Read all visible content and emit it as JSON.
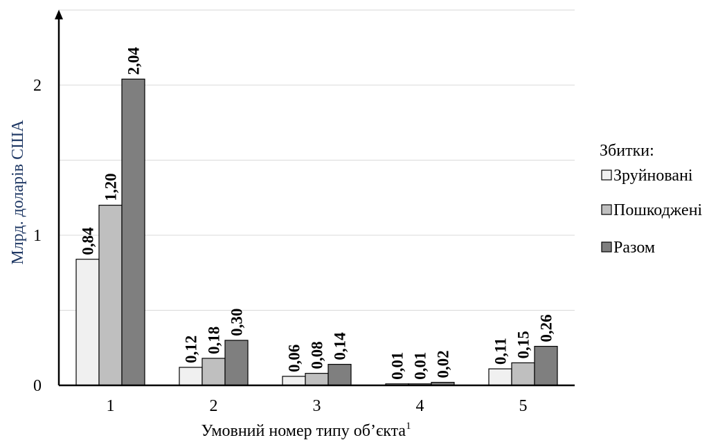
{
  "chart_data": {
    "type": "bar",
    "title": "",
    "xlabel": "Умовний номер типу об’єкта",
    "xlabel_superscript": "1",
    "ylabel": "Млрд. доларів США",
    "ylim": [
      0,
      2.5
    ],
    "yticks": [
      0,
      1,
      2
    ],
    "ytick_labels": [
      "0",
      "1",
      "2"
    ],
    "categories": [
      "1",
      "2",
      "3",
      "4",
      "5"
    ],
    "grid": true,
    "legend_position": "right",
    "legend_title": "Збитки:",
    "series": [
      {
        "name": "Зруйновані",
        "color": "#f0f0f0",
        "values": [
          0.84,
          0.12,
          0.06,
          0.01,
          0.11
        ],
        "labels": [
          "0,84",
          "0,12",
          "0,06",
          "0,01",
          "0,11"
        ]
      },
      {
        "name": "Пошкоджені",
        "color": "#bfbfbf",
        "values": [
          1.2,
          0.18,
          0.08,
          0.01,
          0.15
        ],
        "labels": [
          "1,20",
          "0,18",
          "0,08",
          "0,01",
          "0,15"
        ]
      },
      {
        "name": "Разом",
        "color": "#7f7f7f",
        "values": [
          2.04,
          0.3,
          0.14,
          0.02,
          0.26
        ],
        "labels": [
          "2,04",
          "0,30",
          "0,14",
          "0,02",
          "0,26"
        ]
      }
    ]
  }
}
